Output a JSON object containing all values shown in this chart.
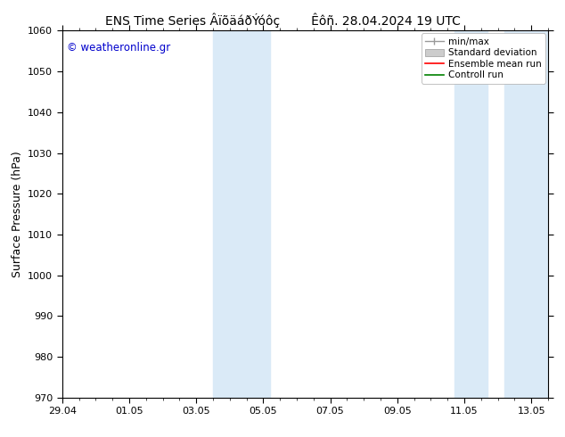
{
  "title_left": "ENS Time Series ÂïõäáðÝóôç",
  "title_right": "Êôñ. 28.04.2024 19 UTC",
  "ylabel": "Surface Pressure (hPa)",
  "ylim": [
    970,
    1060
  ],
  "yticks": [
    970,
    980,
    990,
    1000,
    1010,
    1020,
    1030,
    1040,
    1050,
    1060
  ],
  "xtick_labels": [
    "29.04",
    "01.05",
    "03.05",
    "05.05",
    "07.05",
    "09.05",
    "11.05",
    "13.05"
  ],
  "xtick_positions": [
    0,
    2,
    4,
    6,
    8,
    10,
    12,
    14
  ],
  "xlim": [
    0,
    14.5
  ],
  "shaded_bands": [
    {
      "x_start": 4.5,
      "x_end": 6.2
    },
    {
      "x_start": 11.7,
      "x_end": 12.7
    },
    {
      "x_start": 13.2,
      "x_end": 14.5
    }
  ],
  "watermark_text": "© weatheronline.gr",
  "watermark_color": "#0000cc",
  "bg_color": "#ffffff",
  "band_color": "#daeaf7",
  "legend_items": [
    {
      "label": "min/max"
    },
    {
      "label": "Standard deviation"
    },
    {
      "label": "Ensemble mean run"
    },
    {
      "label": "Controll run"
    }
  ],
  "legend_line_colors": [
    "#999999",
    "#cccccc",
    "#ff0000",
    "#008000"
  ],
  "title_fontsize": 10,
  "ylabel_fontsize": 9,
  "watermark_fontsize": 8.5,
  "tick_fontsize": 8,
  "legend_fontsize": 7.5,
  "fig_width": 6.34,
  "fig_height": 4.9,
  "dpi": 100
}
